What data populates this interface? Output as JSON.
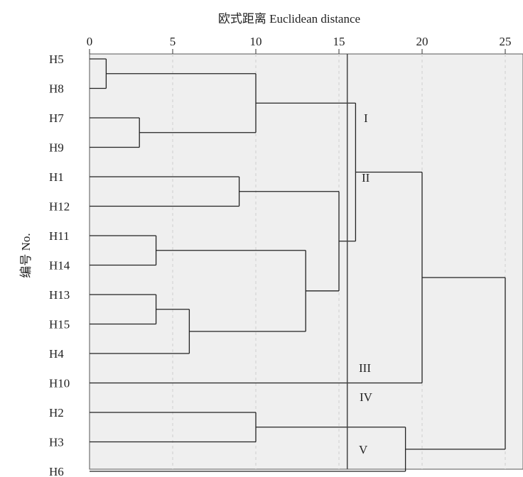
{
  "chart_data": {
    "type": "dendrogram",
    "title": "欧式距离 Euclidean distance",
    "ylabel": "编号 No.",
    "xlim": [
      0,
      25
    ],
    "xticks": [
      0,
      5,
      10,
      15,
      20,
      25
    ],
    "xtick_labels": [
      "0",
      "5",
      "10",
      "15",
      "20",
      "25"
    ],
    "grid": true,
    "leaves": [
      "H5",
      "H8",
      "H7",
      "H9",
      "H1",
      "H12",
      "H11",
      "H14",
      "H13",
      "H15",
      "H4",
      "H10",
      "H2",
      "H3",
      "H6"
    ],
    "merges": [
      {
        "left": "H5",
        "right": "H8",
        "distance": 1
      },
      {
        "left": "H7",
        "right": "H9",
        "distance": 3
      },
      {
        "left": "H13",
        "right": "H15",
        "distance": 4
      },
      {
        "left": "H11",
        "right": "H14",
        "distance": 4
      },
      {
        "left": "(H13,H15)",
        "right": "H4",
        "distance": 6
      },
      {
        "left": "H1",
        "right": "H12",
        "distance": 9
      },
      {
        "left": "(H5,H8)",
        "right": "(H7,H9)",
        "distance": 10
      },
      {
        "left": "H2",
        "right": "H3",
        "distance": 10
      },
      {
        "left": "(H11,H14)",
        "right": "(H13,H15,H4)",
        "distance": 13
      },
      {
        "left": "(H1,H12)",
        "right": "(H11,H14,H13,H15,H4)",
        "distance": 15
      },
      {
        "left": "(H5,H8,H7,H9)",
        "right": "(H1,H12,H11,H14,H13,H15,H4)",
        "distance": 16
      },
      {
        "left": "(H2,H3)",
        "right": "H6",
        "distance": 19
      },
      {
        "left": "(H5,...,H4)",
        "right": "H10",
        "distance": 20
      },
      {
        "left": "(H5,...,H10)",
        "right": "(H2,H3,H6)",
        "distance": 25
      }
    ],
    "cut_distance": 15.5,
    "cluster_labels": [
      "I",
      "II",
      "III",
      "IV",
      "V"
    ]
  }
}
